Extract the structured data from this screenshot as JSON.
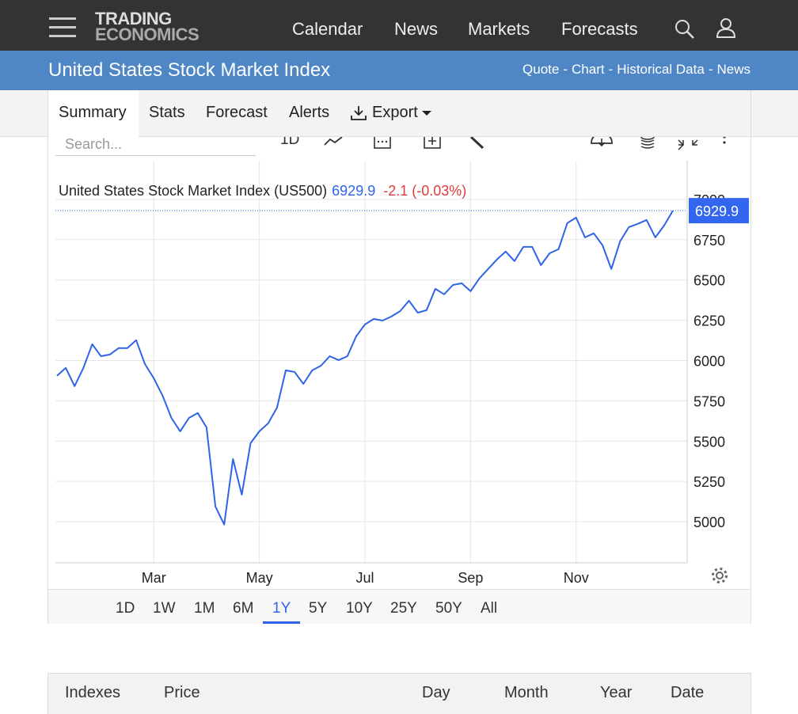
{
  "nav": {
    "logo_top": "TRADING",
    "logo_bottom": "ECONOMICS",
    "items": [
      "Calendar",
      "News",
      "Markets",
      "Forecasts"
    ]
  },
  "banner": {
    "title": "United States Stock Market Index",
    "links": [
      "Quote",
      "Chart",
      "Historical Data",
      "News"
    ],
    "separator": "-"
  },
  "tabs": [
    "Summary",
    "Stats",
    "Forecast",
    "Alerts",
    "Export"
  ],
  "toolbar": {
    "search_placeholder": "Search...",
    "interval": "1D"
  },
  "quote": {
    "name": "United States Stock Market Index (US500)",
    "price": "6929.9",
    "change": "-2.1 (-0.03%)"
  },
  "chart_data": {
    "type": "line",
    "categories": [
      null,
      null,
      null,
      null,
      null,
      null,
      null,
      null,
      null,
      null,
      null,
      "Mar",
      null,
      null,
      null,
      null,
      null,
      null,
      null,
      null,
      null,
      null,
      null,
      "May",
      null,
      null,
      null,
      null,
      null,
      null,
      null,
      null,
      null,
      null,
      null,
      "Jul",
      null,
      null,
      null,
      null,
      null,
      null,
      null,
      null,
      null,
      null,
      null,
      "Sep",
      null,
      null,
      null,
      null,
      null,
      null,
      null,
      null,
      null,
      null,
      null,
      "Nov",
      null,
      null,
      null,
      null,
      null,
      null,
      null,
      null,
      null,
      null,
      null
    ],
    "values": [
      5905,
      5954,
      5841,
      5954,
      6101,
      6027,
      6037,
      6077,
      6077,
      6126,
      5978,
      5890,
      5782,
      5644,
      5561,
      5644,
      5674,
      5585,
      5094,
      4982,
      5389,
      5168,
      5487,
      5561,
      5610,
      5708,
      5939,
      5929,
      5855,
      5939,
      5968,
      6027,
      6003,
      6027,
      6150,
      6224,
      6258,
      6248,
      6273,
      6307,
      6371,
      6297,
      6312,
      6445,
      6411,
      6469,
      6479,
      6430,
      6509,
      6568,
      6627,
      6676,
      6617,
      6705,
      6705,
      6592,
      6666,
      6691,
      6853,
      6887,
      6764,
      6789,
      6715,
      6568,
      6740,
      6828,
      6848,
      6872,
      6764,
      6838,
      6929.9
    ],
    "color": "#2f64e8",
    "ylim": [
      4745,
      7240
    ],
    "yticks": [
      5000,
      5250,
      5500,
      5750,
      6000,
      6250,
      6500,
      6750,
      7000
    ],
    "grid": true
  },
  "ranges": [
    "1D",
    "1W",
    "1M",
    "6M",
    "1Y",
    "5Y",
    "10Y",
    "25Y",
    "50Y",
    "All"
  ],
  "active_range_index": 4,
  "table": {
    "headers": [
      "Indexes",
      "Price",
      "Day",
      "Month",
      "Year",
      "Date"
    ]
  }
}
